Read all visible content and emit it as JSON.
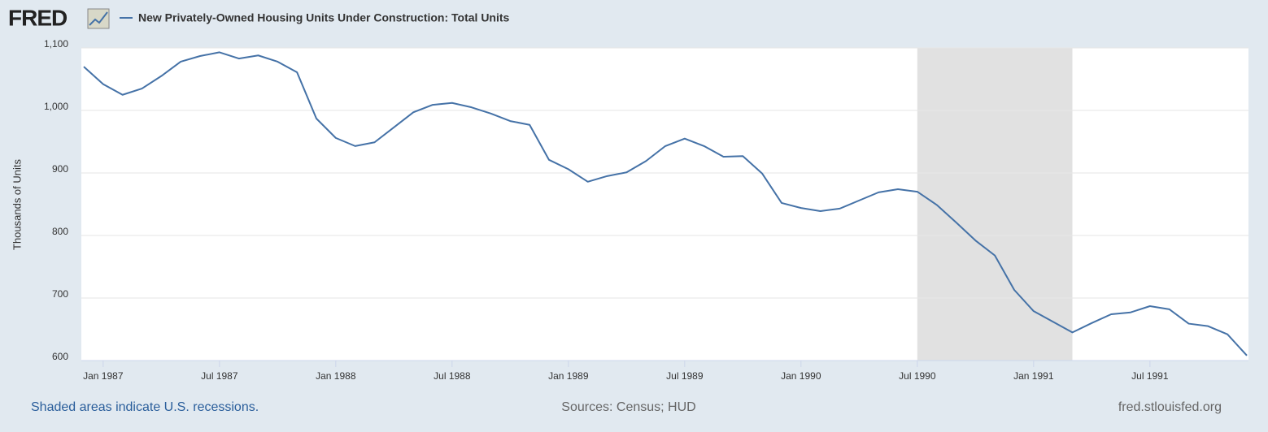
{
  "chart_data": {
    "type": "line",
    "logo": "FRED",
    "title": "New Privately-Owned Housing Units Under Construction: Total Units",
    "y_label": "Thousands of Units",
    "x": [
      "1986-12",
      "1987-01",
      "1987-02",
      "1987-03",
      "1987-04",
      "1987-05",
      "1987-06",
      "1987-07",
      "1987-08",
      "1987-09",
      "1987-10",
      "1987-11",
      "1987-12",
      "1988-01",
      "1988-02",
      "1988-03",
      "1988-04",
      "1988-05",
      "1988-06",
      "1988-07",
      "1988-08",
      "1988-09",
      "1988-10",
      "1988-11",
      "1988-12",
      "1989-01",
      "1989-02",
      "1989-03",
      "1989-04",
      "1989-05",
      "1989-06",
      "1989-07",
      "1989-08",
      "1989-09",
      "1989-10",
      "1989-11",
      "1989-12",
      "1990-01",
      "1990-02",
      "1990-03",
      "1990-04",
      "1990-05",
      "1990-06",
      "1990-07",
      "1990-08",
      "1990-09",
      "1990-10",
      "1990-11",
      "1990-12",
      "1991-01",
      "1991-02",
      "1991-03",
      "1991-04",
      "1991-05",
      "1991-06",
      "1991-07",
      "1991-08",
      "1991-09",
      "1991-10",
      "1991-11",
      "1991-12"
    ],
    "series": [
      {
        "name": "New Privately-Owned Housing Units Under Construction: Total Units",
        "color": "#4572a7",
        "values": [
          1070,
          1042,
          1025,
          1035,
          1055,
          1078,
          1087,
          1093,
          1083,
          1088,
          1078,
          1061,
          987,
          956,
          943,
          949,
          973,
          997,
          1009,
          1012,
          1005,
          995,
          983,
          977,
          921,
          906,
          886,
          895,
          901,
          919,
          943,
          955,
          943,
          926,
          927,
          899,
          852,
          844,
          839,
          843,
          856,
          869,
          874,
          870,
          849,
          821,
          792,
          768,
          713,
          679,
          662,
          645,
          660,
          674,
          677,
          687,
          682,
          659,
          655,
          642,
          608
        ]
      }
    ],
    "xlim": [
      "1986-12",
      "1991-12"
    ],
    "xticks": [
      {
        "value": "1987-01",
        "label": "Jan 1987"
      },
      {
        "value": "1987-07",
        "label": "Jul 1987"
      },
      {
        "value": "1988-01",
        "label": "Jan 1988"
      },
      {
        "value": "1988-07",
        "label": "Jul 1988"
      },
      {
        "value": "1989-01",
        "label": "Jan 1989"
      },
      {
        "value": "1989-07",
        "label": "Jul 1989"
      },
      {
        "value": "1990-01",
        "label": "Jan 1990"
      },
      {
        "value": "1990-07",
        "label": "Jul 1990"
      },
      {
        "value": "1991-01",
        "label": "Jan 1991"
      },
      {
        "value": "1991-07",
        "label": "Jul 1991"
      }
    ],
    "ylim": [
      600,
      1100
    ],
    "yticks": [
      600,
      700,
      800,
      900,
      {
        "value": 1000,
        "label": "1,000"
      },
      {
        "value": 1100,
        "label": "1,100"
      }
    ],
    "grid": true,
    "recessions": [
      {
        "start": "1990-07",
        "end": "1991-03",
        "color": "#e1e1e1"
      }
    ],
    "recession_note": "Shaded areas indicate U.S. recessions.",
    "source": "Sources: Census; HUD",
    "site": "fred.stlouisfed.org"
  }
}
